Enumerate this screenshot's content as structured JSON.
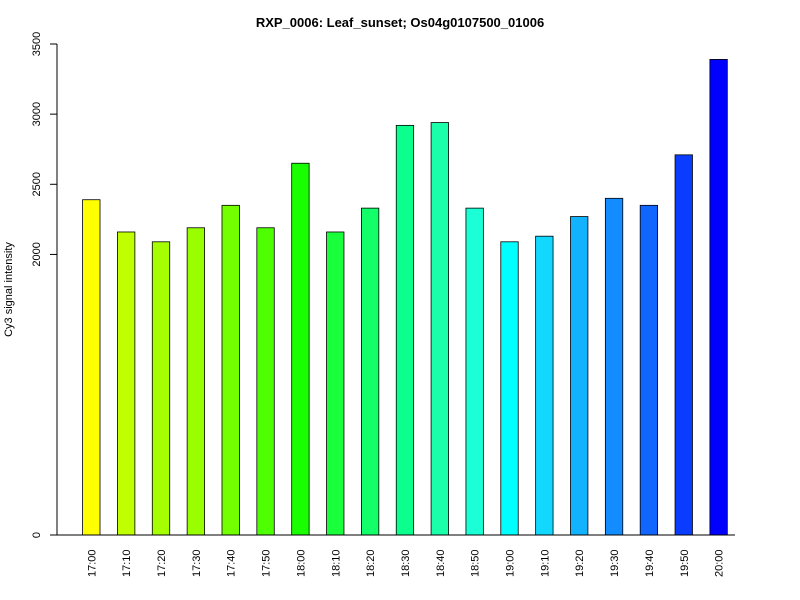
{
  "chart_data": {
    "type": "bar",
    "title": "RXP_0006: Leaf_sunset; Os04g0107500_01006",
    "xlabel": "",
    "ylabel": "Cy3 signal intensity",
    "categories": [
      "17:00",
      "17:10",
      "17:20",
      "17:30",
      "17:40",
      "17:50",
      "18:00",
      "18:10",
      "18:20",
      "18:30",
      "18:40",
      "18:50",
      "19:00",
      "19:10",
      "19:20",
      "19:30",
      "19:40",
      "19:50",
      "20:00"
    ],
    "values": [
      2390,
      2160,
      2090,
      2190,
      2350,
      2190,
      2650,
      2160,
      2330,
      2920,
      2940,
      2330,
      2090,
      2130,
      2270,
      2400,
      2350,
      2710,
      3390
    ],
    "colors": [
      "#FFFF00",
      "#BFFF00",
      "#A6FF00",
      "#99FF00",
      "#73FF00",
      "#4DFF00",
      "#1AFF00",
      "#1AFF3C",
      "#12FF6A",
      "#0AFF8C",
      "#1AFFAA",
      "#1AFFD5",
      "#00FFFF",
      "#12D8FF",
      "#12B2FF",
      "#128CFF",
      "#1066FF",
      "#0A3CFF",
      "#0000FF"
    ],
    "yticks": [
      0,
      2000,
      2500,
      3000,
      3500
    ],
    "ylim": [
      0,
      3500
    ],
    "grid": false,
    "legend": "none"
  }
}
